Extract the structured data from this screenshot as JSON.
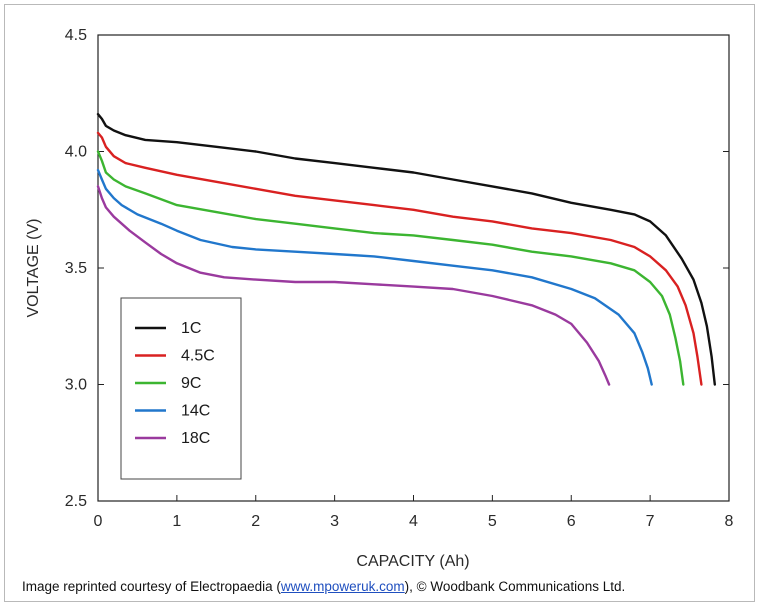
{
  "chart_data": {
    "type": "line",
    "title": "",
    "xlabel": "CAPACITY (Ah)",
    "ylabel": "VOLTAGE (V)",
    "xlim": [
      0,
      8
    ],
    "ylim": [
      2.5,
      4.5
    ],
    "xticks": [
      0,
      1,
      2,
      3,
      4,
      5,
      6,
      7,
      8
    ],
    "xtick_labels": [
      "0",
      "1",
      "2",
      "3",
      "4",
      "5",
      "6",
      "7",
      "8"
    ],
    "yticks": [
      2.5,
      3.0,
      3.5,
      4.0,
      4.5
    ],
    "ytick_labels": [
      "2.5",
      "3.0",
      "3.5",
      "4.0",
      "4.5"
    ],
    "grid": false,
    "legend_position": "bottom-left",
    "series": [
      {
        "name": "1C",
        "color": "#111111",
        "x": [
          0,
          0.05,
          0.1,
          0.2,
          0.35,
          0.6,
          1.0,
          1.5,
          2.0,
          2.5,
          3.0,
          3.5,
          4.0,
          4.5,
          5.0,
          5.5,
          6.0,
          6.5,
          6.8,
          7.0,
          7.2,
          7.4,
          7.55,
          7.65,
          7.72,
          7.78,
          7.82
        ],
        "y": [
          4.16,
          4.14,
          4.11,
          4.09,
          4.07,
          4.05,
          4.04,
          4.02,
          4.0,
          3.97,
          3.95,
          3.93,
          3.91,
          3.88,
          3.85,
          3.82,
          3.78,
          3.75,
          3.73,
          3.7,
          3.64,
          3.54,
          3.45,
          3.35,
          3.25,
          3.12,
          3.0
        ]
      },
      {
        "name": "4.5C",
        "color": "#d92121",
        "x": [
          0,
          0.05,
          0.1,
          0.2,
          0.35,
          0.6,
          1.0,
          1.5,
          2.0,
          2.5,
          3.0,
          3.5,
          4.0,
          4.5,
          5.0,
          5.5,
          6.0,
          6.5,
          6.8,
          7.0,
          7.2,
          7.35,
          7.45,
          7.55,
          7.6,
          7.65
        ],
        "y": [
          4.08,
          4.06,
          4.02,
          3.98,
          3.95,
          3.93,
          3.9,
          3.87,
          3.84,
          3.81,
          3.79,
          3.77,
          3.75,
          3.72,
          3.7,
          3.67,
          3.65,
          3.62,
          3.59,
          3.55,
          3.49,
          3.42,
          3.34,
          3.22,
          3.12,
          3.0
        ]
      },
      {
        "name": "9C",
        "color": "#3cb531",
        "x": [
          0,
          0.05,
          0.1,
          0.2,
          0.35,
          0.6,
          1.0,
          1.5,
          2.0,
          2.5,
          3.0,
          3.5,
          4.0,
          4.5,
          5.0,
          5.5,
          6.0,
          6.5,
          6.8,
          7.0,
          7.15,
          7.25,
          7.32,
          7.38,
          7.42
        ],
        "y": [
          4.0,
          3.96,
          3.91,
          3.88,
          3.85,
          3.82,
          3.77,
          3.74,
          3.71,
          3.69,
          3.67,
          3.65,
          3.64,
          3.62,
          3.6,
          3.57,
          3.55,
          3.52,
          3.49,
          3.44,
          3.38,
          3.3,
          3.2,
          3.1,
          3.0
        ]
      },
      {
        "name": "14C",
        "color": "#2177cc",
        "x": [
          0,
          0.05,
          0.1,
          0.2,
          0.3,
          0.5,
          0.8,
          1.0,
          1.3,
          1.7,
          2.0,
          2.5,
          3.0,
          3.5,
          4.0,
          4.5,
          5.0,
          5.5,
          6.0,
          6.3,
          6.6,
          6.8,
          6.9,
          6.97,
          7.02
        ],
        "y": [
          3.92,
          3.88,
          3.84,
          3.8,
          3.77,
          3.73,
          3.69,
          3.66,
          3.62,
          3.59,
          3.58,
          3.57,
          3.56,
          3.55,
          3.53,
          3.51,
          3.49,
          3.46,
          3.41,
          3.37,
          3.3,
          3.22,
          3.14,
          3.07,
          3.0
        ]
      },
      {
        "name": "18C",
        "color": "#9a3a9e",
        "x": [
          0,
          0.05,
          0.1,
          0.2,
          0.4,
          0.6,
          0.8,
          1.0,
          1.3,
          1.6,
          2.0,
          2.5,
          3.0,
          3.5,
          4.0,
          4.5,
          5.0,
          5.5,
          5.8,
          6.0,
          6.2,
          6.35,
          6.43,
          6.48
        ],
        "y": [
          3.85,
          3.8,
          3.76,
          3.72,
          3.66,
          3.61,
          3.56,
          3.52,
          3.48,
          3.46,
          3.45,
          3.44,
          3.44,
          3.43,
          3.42,
          3.41,
          3.38,
          3.34,
          3.3,
          3.26,
          3.18,
          3.1,
          3.04,
          3.0
        ]
      }
    ]
  },
  "credit": {
    "prefix": "Image reprinted courtesy of Electropaedia (",
    "link_text": "www.mpoweruk.com",
    "suffix": "), © Woodbank Communications Ltd."
  }
}
